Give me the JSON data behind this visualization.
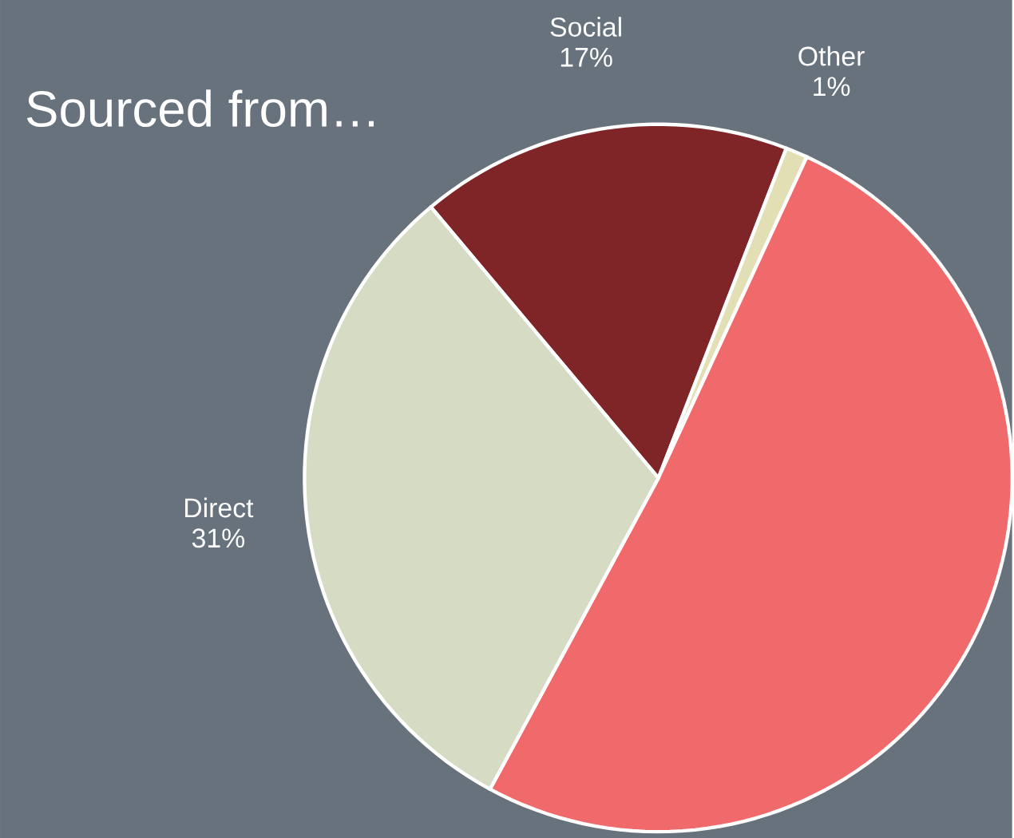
{
  "chart_data": {
    "type": "pie",
    "title": "Sourced from…",
    "categories": [
      "Social",
      "Other",
      null,
      "Direct"
    ],
    "values": [
      17,
      1,
      51,
      31
    ],
    "value_labels": [
      "17%",
      "1%",
      null,
      "31%"
    ],
    "colors": [
      "#7f2427",
      "#e3dfb4",
      "#f06a6c",
      "#d6dbc4"
    ]
  }
}
